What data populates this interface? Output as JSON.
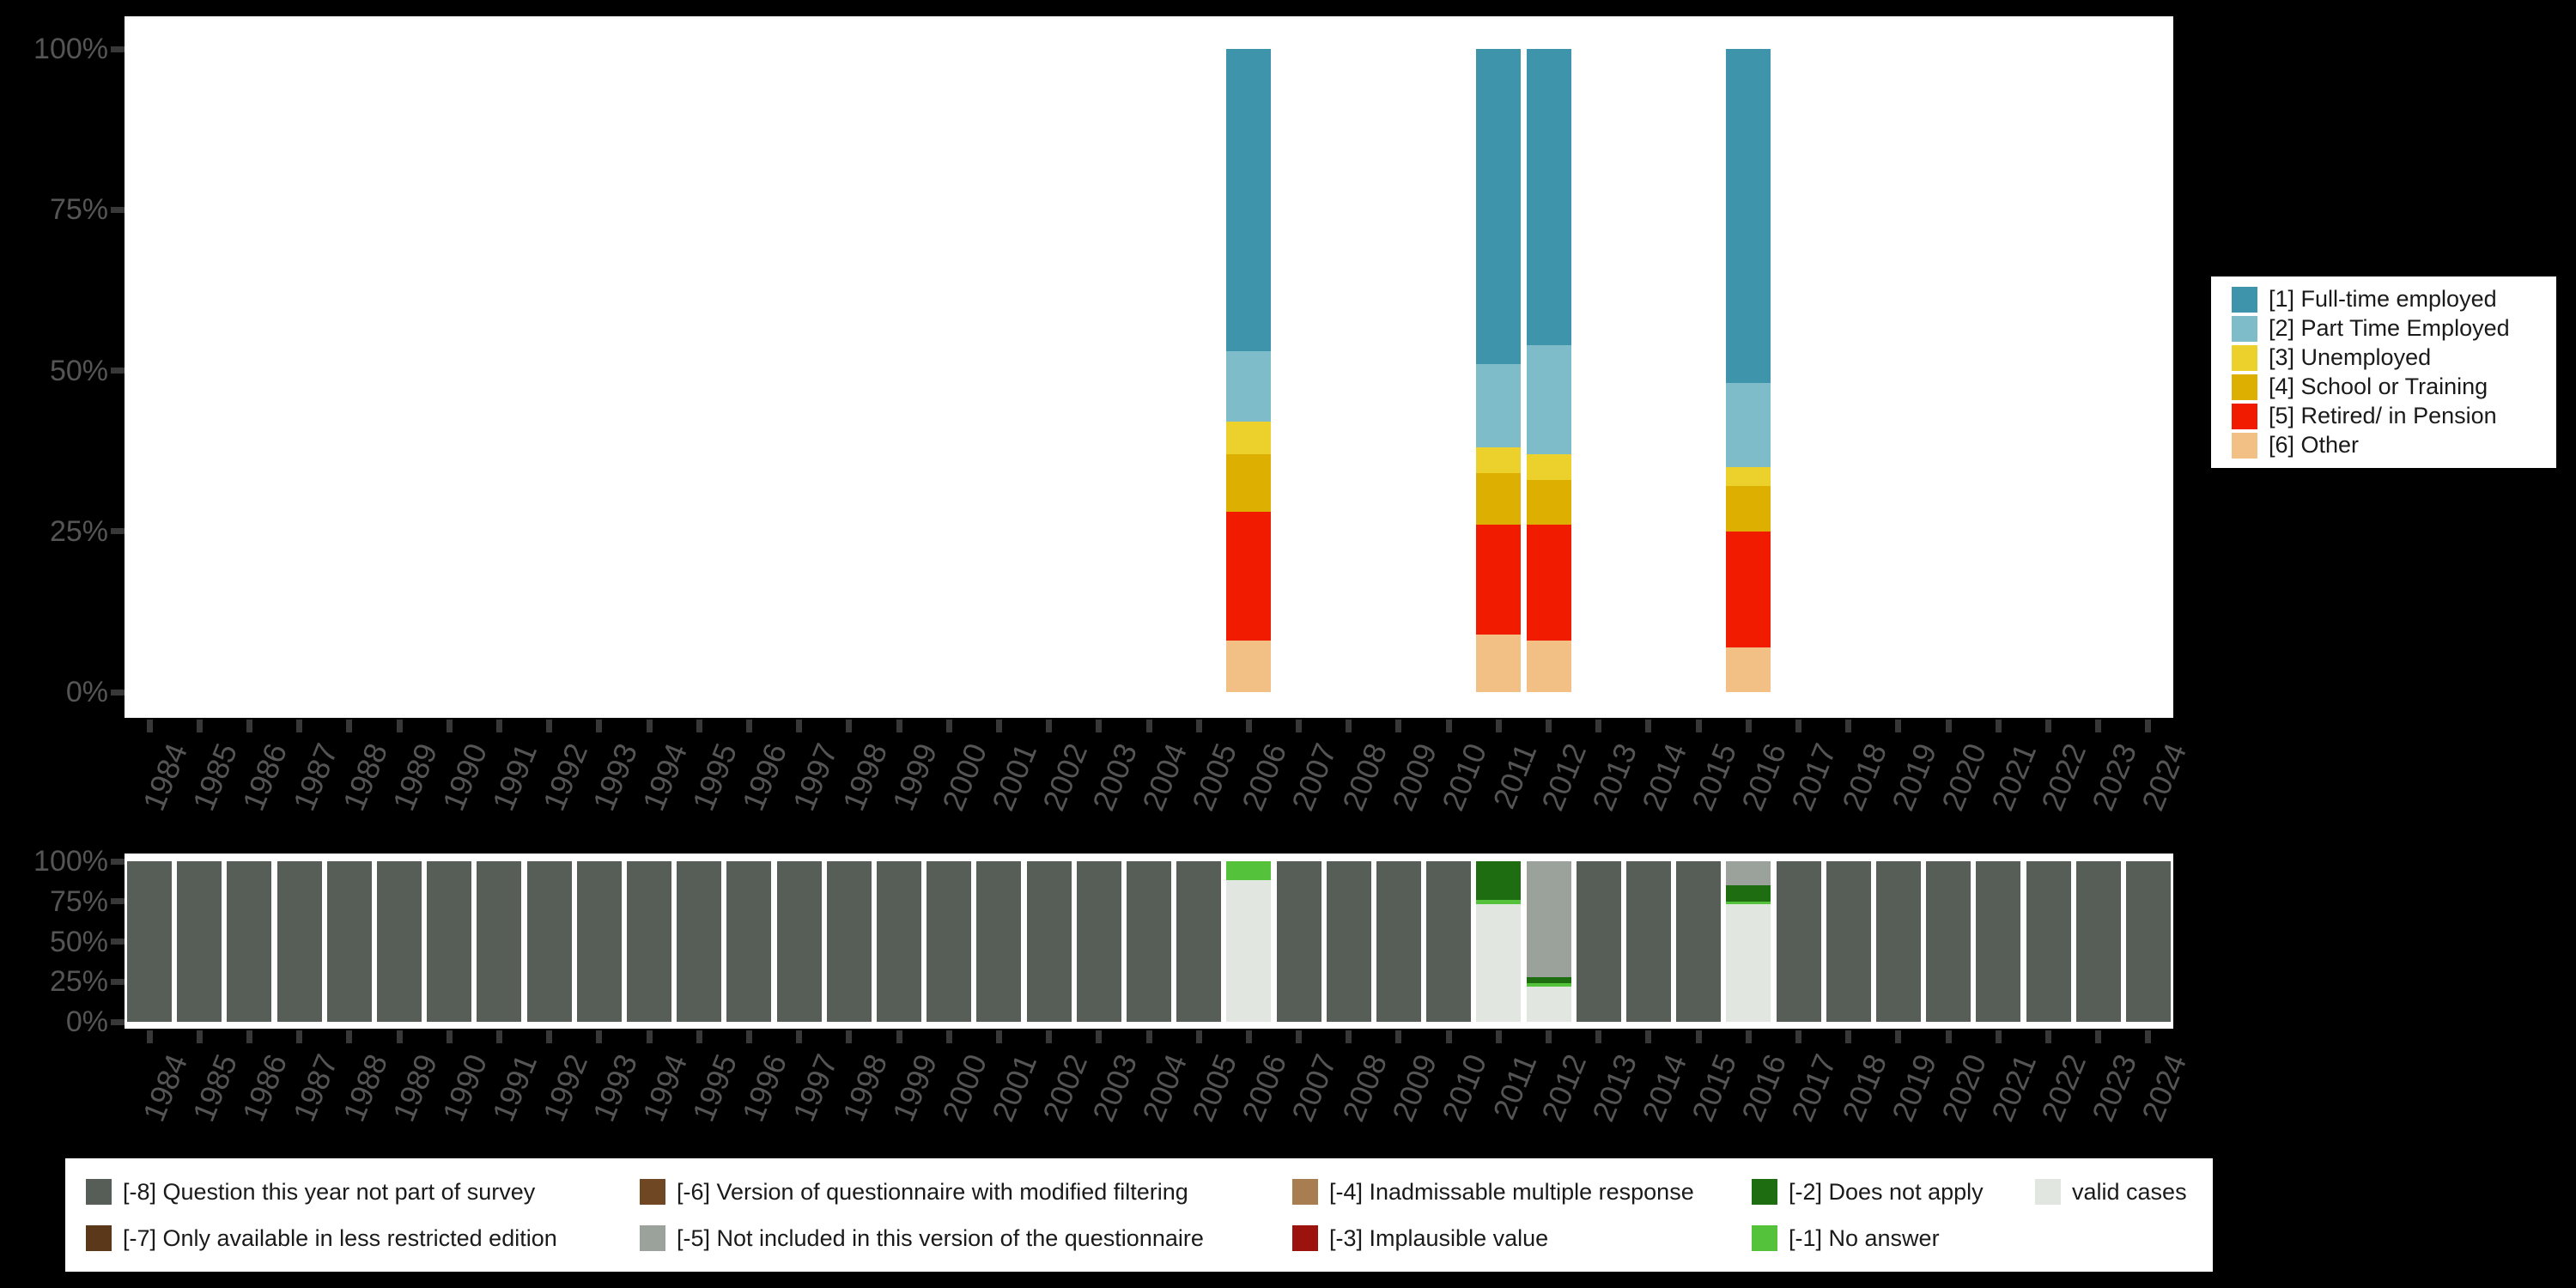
{
  "page": {
    "background": "#000000"
  },
  "years": [
    "1984",
    "1985",
    "1986",
    "1987",
    "1988",
    "1989",
    "1990",
    "1991",
    "1992",
    "1993",
    "1994",
    "1995",
    "1996",
    "1997",
    "1998",
    "1999",
    "2000",
    "2001",
    "2002",
    "2003",
    "2004",
    "2005",
    "2006",
    "2007",
    "2008",
    "2009",
    "2010",
    "2011",
    "2012",
    "2013",
    "2014",
    "2015",
    "2016",
    "2017",
    "2018",
    "2019",
    "2020",
    "2021",
    "2022",
    "2023",
    "2024"
  ],
  "chart_data": [
    {
      "id": "employment-status-distribution",
      "type": "bar",
      "stacked": true,
      "unit": "percent",
      "title": "",
      "xlabel": "",
      "ylabel": "",
      "ylim": [
        0,
        100
      ],
      "grid": false,
      "legend_position": "right",
      "y_tick_labels": [
        "100%",
        "75%",
        "50%",
        "25%",
        "0%"
      ],
      "x_tick_labels": [
        "1984",
        "1985",
        "1986",
        "1987",
        "1988",
        "1989",
        "1990",
        "1991",
        "1992",
        "1993",
        "1994",
        "1995",
        "1996",
        "1997",
        "1998",
        "1999",
        "2000",
        "2001",
        "2002",
        "2003",
        "2004",
        "2005",
        "2006",
        "2007",
        "2008",
        "2009",
        "2010",
        "2011",
        "2012",
        "2013",
        "2014",
        "2015",
        "2016",
        "2017",
        "2018",
        "2019",
        "2020",
        "2021",
        "2022",
        "2023",
        "2024"
      ],
      "categories": [
        {
          "label": "[1] Full-time employed",
          "color": "#3d94ab"
        },
        {
          "label": "[2] Part Time Employed",
          "color": "#7fbcca"
        },
        {
          "label": "[3] Unemployed",
          "color": "#ecd12d"
        },
        {
          "label": "[4] School or Training",
          "color": "#dcaf00"
        },
        {
          "label": "[5] Retired/ in Pension",
          "color": "#f11c00"
        },
        {
          "label": "[6] Other",
          "color": "#f2bf85"
        }
      ],
      "bars": [
        {
          "year": "2006",
          "segments": [
            {
              "label": "[1] Full-time employed",
              "pct": 47
            },
            {
              "label": "[2] Part Time Employed",
              "pct": 11
            },
            {
              "label": "[3] Unemployed",
              "pct": 5
            },
            {
              "label": "[4] School or Training",
              "pct": 9
            },
            {
              "label": "[5] Retired/ in Pension",
              "pct": 20
            },
            {
              "label": "[6] Other",
              "pct": 8
            }
          ]
        },
        {
          "year": "2011",
          "segments": [
            {
              "label": "[1] Full-time employed",
              "pct": 49
            },
            {
              "label": "[2] Part Time Employed",
              "pct": 13
            },
            {
              "label": "[3] Unemployed",
              "pct": 4
            },
            {
              "label": "[4] School or Training",
              "pct": 8
            },
            {
              "label": "[5] Retired/ in Pension",
              "pct": 17
            },
            {
              "label": "[6] Other",
              "pct": 9
            }
          ]
        },
        {
          "year": "2012",
          "segments": [
            {
              "label": "[1] Full-time employed",
              "pct": 46
            },
            {
              "label": "[2] Part Time Employed",
              "pct": 17
            },
            {
              "label": "[3] Unemployed",
              "pct": 4
            },
            {
              "label": "[4] School or Training",
              "pct": 7
            },
            {
              "label": "[5] Retired/ in Pension",
              "pct": 18
            },
            {
              "label": "[6] Other",
              "pct": 8
            }
          ]
        },
        {
          "year": "2016",
          "segments": [
            {
              "label": "[1] Full-time employed",
              "pct": 52
            },
            {
              "label": "[2] Part Time Employed",
              "pct": 13
            },
            {
              "label": "[3] Unemployed",
              "pct": 3
            },
            {
              "label": "[4] School or Training",
              "pct": 7
            },
            {
              "label": "[5] Retired/ in Pension",
              "pct": 18
            },
            {
              "label": "[6] Other",
              "pct": 7
            }
          ]
        }
      ]
    },
    {
      "id": "missing-values-distribution",
      "type": "bar",
      "stacked": true,
      "unit": "percent",
      "title": "",
      "xlabel": "",
      "ylabel": "",
      "ylim": [
        0,
        100
      ],
      "grid": false,
      "legend_position": "bottom",
      "y_tick_labels": [
        "100%",
        "75%",
        "50%",
        "25%",
        "0%"
      ],
      "x_tick_labels": [
        "1984",
        "1985",
        "1986",
        "1987",
        "1988",
        "1989",
        "1990",
        "1991",
        "1992",
        "1993",
        "1994",
        "1995",
        "1996",
        "1997",
        "1998",
        "1999",
        "2000",
        "2001",
        "2002",
        "2003",
        "2004",
        "2005",
        "2006",
        "2007",
        "2008",
        "2009",
        "2010",
        "2011",
        "2012",
        "2013",
        "2014",
        "2015",
        "2016",
        "2017",
        "2018",
        "2019",
        "2020",
        "2021",
        "2022",
        "2023",
        "2024"
      ],
      "categories": [
        {
          "label": "[-8] Question this year not part of survey",
          "color": "#575e57"
        },
        {
          "label": "[-7] Only available in less restricted edition",
          "color": "#5c381b"
        },
        {
          "label": "[-6] Version of questionnaire with modified filtering",
          "color": "#6f4723"
        },
        {
          "label": "[-5] Not included in this version of the questionnaire",
          "color": "#9ba19b"
        },
        {
          "label": "[-4] Inadmissable multiple response",
          "color": "#a87e51"
        },
        {
          "label": "[-3] Implausible value",
          "color": "#9c120c"
        },
        {
          "label": "[-2] Does not apply",
          "color": "#1e6d10"
        },
        {
          "label": "[-1] No answer",
          "color": "#55c23c"
        },
        {
          "label": "valid cases",
          "color": "#e2e6e0"
        }
      ],
      "default_segments": [
        {
          "label": "[-8] Question this year not part of survey",
          "pct": 100
        }
      ],
      "bars": [
        {
          "year": "2006",
          "segments": [
            {
              "label": "[-1] No answer",
              "pct": 12
            },
            {
              "label": "valid cases",
              "pct": 88
            }
          ]
        },
        {
          "year": "2011",
          "segments": [
            {
              "label": "[-2] Does not apply",
              "pct": 24
            },
            {
              "label": "[-1] No answer",
              "pct": 3
            },
            {
              "label": "valid cases",
              "pct": 73
            }
          ]
        },
        {
          "year": "2012",
          "segments": [
            {
              "label": "[-5] Not included in this version of the questionnaire",
              "pct": 72
            },
            {
              "label": "[-2] Does not apply",
              "pct": 4
            },
            {
              "label": "[-1] No answer",
              "pct": 2
            },
            {
              "label": "valid cases",
              "pct": 22
            }
          ]
        },
        {
          "year": "2016",
          "segments": [
            {
              "label": "[-5] Not included in this version of the questionnaire",
              "pct": 15
            },
            {
              "label": "[-2] Does not apply",
              "pct": 10
            },
            {
              "label": "[-1] No answer",
              "pct": 2
            },
            {
              "label": "valid cases",
              "pct": 73
            }
          ]
        }
      ]
    }
  ]
}
